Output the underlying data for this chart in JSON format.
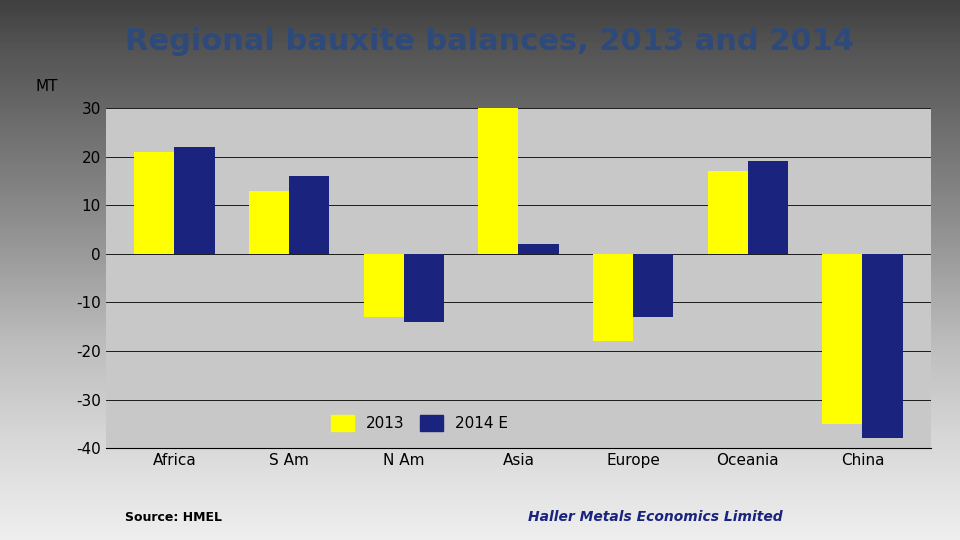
{
  "title": "Regional bauxite balances, 2013 and 2014",
  "ylabel": "MT",
  "categories": [
    "Africa",
    "S Am",
    "N Am",
    "Asia",
    "Europe",
    "Oceania",
    "China"
  ],
  "values_2013": [
    21,
    13,
    -13,
    30,
    -18,
    17,
    -35
  ],
  "values_2014": [
    22,
    16,
    -14,
    2,
    -13,
    19,
    -38
  ],
  "color_2013": "#FFFF00",
  "color_2014": "#1a237e",
  "ylim": [
    -40,
    30
  ],
  "yticks": [
    -40,
    -30,
    -20,
    -10,
    0,
    10,
    20,
    30
  ],
  "legend_2013": "2013",
  "legend_2014": "2014 E",
  "source_left": "Source: HMEL",
  "source_right": "Haller Metals Economics Limited",
  "bg_color_top": "#ffffff",
  "bg_color_bottom": "#b0b0b0",
  "plot_bg_color": "#c8c8c8",
  "title_color": "#2e4a7a",
  "bar_width": 0.35,
  "title_fontsize": 22,
  "axis_fontsize": 11,
  "tick_fontsize": 11,
  "legend_fontsize": 11
}
